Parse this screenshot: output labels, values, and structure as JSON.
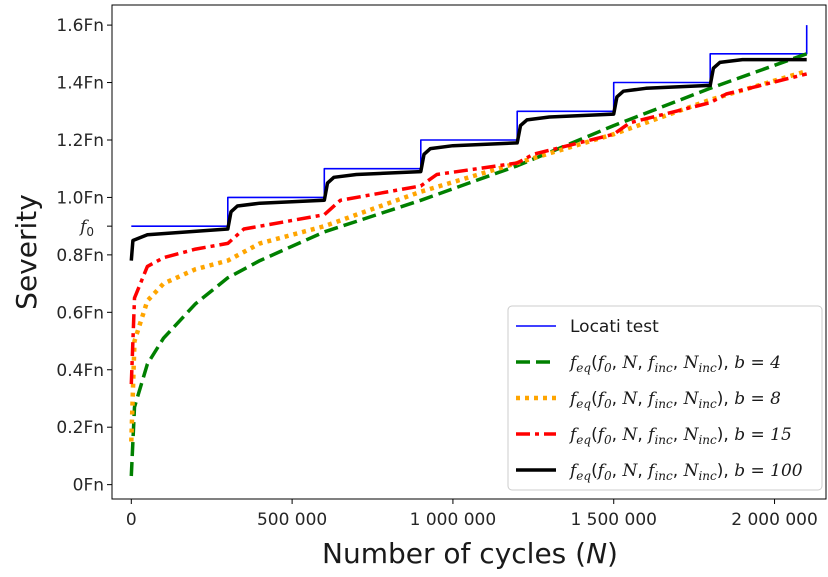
{
  "chart_data": {
    "type": "line",
    "xlabel_text": "Number of cycles (",
    "xlabel_var": "N",
    "xlabel_close": ")",
    "ylabel": "Severity",
    "xlim": [
      -60000,
      2160000
    ],
    "ylim": [
      -0.05,
      1.67
    ],
    "grid": false,
    "legend_position": "lower-right",
    "x_ticks": [
      {
        "value": 0,
        "label": "0"
      },
      {
        "value": 500000,
        "label": "500 000"
      },
      {
        "value": 1000000,
        "label": "1 000 000"
      },
      {
        "value": 1500000,
        "label": "1 500 000"
      },
      {
        "value": 2000000,
        "label": "2 000 000"
      }
    ],
    "y_ticks": [
      {
        "value": 0.0,
        "label": "0Fn"
      },
      {
        "value": 0.2,
        "label": "0.2Fn"
      },
      {
        "value": 0.4,
        "label": "0.4Fn"
      },
      {
        "value": 0.6,
        "label": "0.6Fn"
      },
      {
        "value": 0.8,
        "label": "0.8Fn"
      },
      {
        "value": 0.9,
        "label": "f0",
        "math": true
      },
      {
        "value": 1.0,
        "label": "1.0Fn"
      },
      {
        "value": 1.2,
        "label": "1.2Fn"
      },
      {
        "value": 1.4,
        "label": "1.4Fn"
      },
      {
        "value": 1.6,
        "label": "1.6Fn"
      }
    ],
    "locati": {
      "start": 0.9,
      "step_increment": 0.1,
      "step_length": 300000,
      "n_steps": 7,
      "end_x": 2100000,
      "end_value": 1.6
    },
    "series": [
      {
        "name": "Locati test",
        "kind": "locati",
        "color": "#0000ff",
        "style": "solid",
        "points": [
          [
            0,
            0.9
          ],
          [
            300000,
            0.9
          ],
          [
            300000,
            1.0
          ],
          [
            600000,
            1.0
          ],
          [
            600000,
            1.1
          ],
          [
            900000,
            1.1
          ],
          [
            900000,
            1.2
          ],
          [
            1200000,
            1.2
          ],
          [
            1200000,
            1.3
          ],
          [
            1500000,
            1.3
          ],
          [
            1500000,
            1.4
          ],
          [
            1800000,
            1.4
          ],
          [
            1800000,
            1.5
          ],
          [
            2100000,
            1.5
          ],
          [
            2100000,
            1.6
          ]
        ]
      },
      {
        "name": "b = 4",
        "b": 4,
        "color": "#008000",
        "style": "dashed",
        "points": [
          [
            0,
            0.03
          ],
          [
            10000,
            0.27
          ],
          [
            50000,
            0.42
          ],
          [
            100000,
            0.51
          ],
          [
            200000,
            0.63
          ],
          [
            300000,
            0.72
          ],
          [
            400000,
            0.78
          ],
          [
            600000,
            0.88
          ],
          [
            900000,
            0.99
          ],
          [
            1200000,
            1.11
          ],
          [
            1500000,
            1.25
          ],
          [
            1800000,
            1.38
          ],
          [
            2100000,
            1.5
          ]
        ]
      },
      {
        "name": "b = 8",
        "b": 8,
        "color": "#ffa500",
        "style": "dotted",
        "points": [
          [
            0,
            0.15
          ],
          [
            10000,
            0.5
          ],
          [
            50000,
            0.64
          ],
          [
            100000,
            0.7
          ],
          [
            200000,
            0.75
          ],
          [
            300000,
            0.78
          ],
          [
            400000,
            0.84
          ],
          [
            600000,
            0.9
          ],
          [
            900000,
            1.02
          ],
          [
            1200000,
            1.12
          ],
          [
            1500000,
            1.22
          ],
          [
            1800000,
            1.34
          ],
          [
            2100000,
            1.44
          ]
        ]
      },
      {
        "name": "b = 15",
        "b": 15,
        "color": "#ff0000",
        "style": "dashdot",
        "points": [
          [
            0,
            0.35
          ],
          [
            10000,
            0.65
          ],
          [
            50000,
            0.76
          ],
          [
            100000,
            0.79
          ],
          [
            200000,
            0.82
          ],
          [
            300000,
            0.84
          ],
          [
            350000,
            0.89
          ],
          [
            400000,
            0.9
          ],
          [
            600000,
            0.94
          ],
          [
            650000,
            0.99
          ],
          [
            900000,
            1.04
          ],
          [
            950000,
            1.08
          ],
          [
            1200000,
            1.12
          ],
          [
            1250000,
            1.15
          ],
          [
            1500000,
            1.22
          ],
          [
            1550000,
            1.26
          ],
          [
            1800000,
            1.33
          ],
          [
            1850000,
            1.36
          ],
          [
            2100000,
            1.43
          ]
        ]
      },
      {
        "name": "b = 100",
        "b": 100,
        "color": "#000000",
        "style": "solid",
        "points": [
          [
            0,
            0.78
          ],
          [
            5000,
            0.85
          ],
          [
            50000,
            0.87
          ],
          [
            300000,
            0.89
          ],
          [
            300000,
            0.89
          ],
          [
            310000,
            0.95
          ],
          [
            330000,
            0.97
          ],
          [
            400000,
            0.98
          ],
          [
            600000,
            0.99
          ],
          [
            610000,
            1.05
          ],
          [
            630000,
            1.07
          ],
          [
            700000,
            1.08
          ],
          [
            900000,
            1.09
          ],
          [
            910000,
            1.15
          ],
          [
            930000,
            1.17
          ],
          [
            1000000,
            1.18
          ],
          [
            1200000,
            1.19
          ],
          [
            1210000,
            1.25
          ],
          [
            1230000,
            1.27
          ],
          [
            1300000,
            1.28
          ],
          [
            1500000,
            1.29
          ],
          [
            1510000,
            1.35
          ],
          [
            1530000,
            1.37
          ],
          [
            1600000,
            1.38
          ],
          [
            1800000,
            1.39
          ],
          [
            1810000,
            1.45
          ],
          [
            1830000,
            1.47
          ],
          [
            1900000,
            1.48
          ],
          [
            2100000,
            1.48
          ]
        ]
      }
    ],
    "legend": [
      {
        "series": 0,
        "text": "Locati test"
      },
      {
        "series": 1,
        "suffix": "b = 4"
      },
      {
        "series": 2,
        "suffix": "b = 8"
      },
      {
        "series": 3,
        "suffix": "b = 15"
      },
      {
        "series": 4,
        "suffix": "b = 100"
      }
    ],
    "legend_formula": {
      "f": "f",
      "eq": "eq",
      "args_open": "(",
      "f0": "f",
      "f0_sub": "0",
      "sep1": ", ",
      "N": "N",
      "sep2": ", ",
      "finc": "f",
      "finc_sub": "inc",
      "sep3": ", ",
      "Ninc": "N",
      "Ninc_sub": "inc",
      "args_close": "), "
    }
  }
}
